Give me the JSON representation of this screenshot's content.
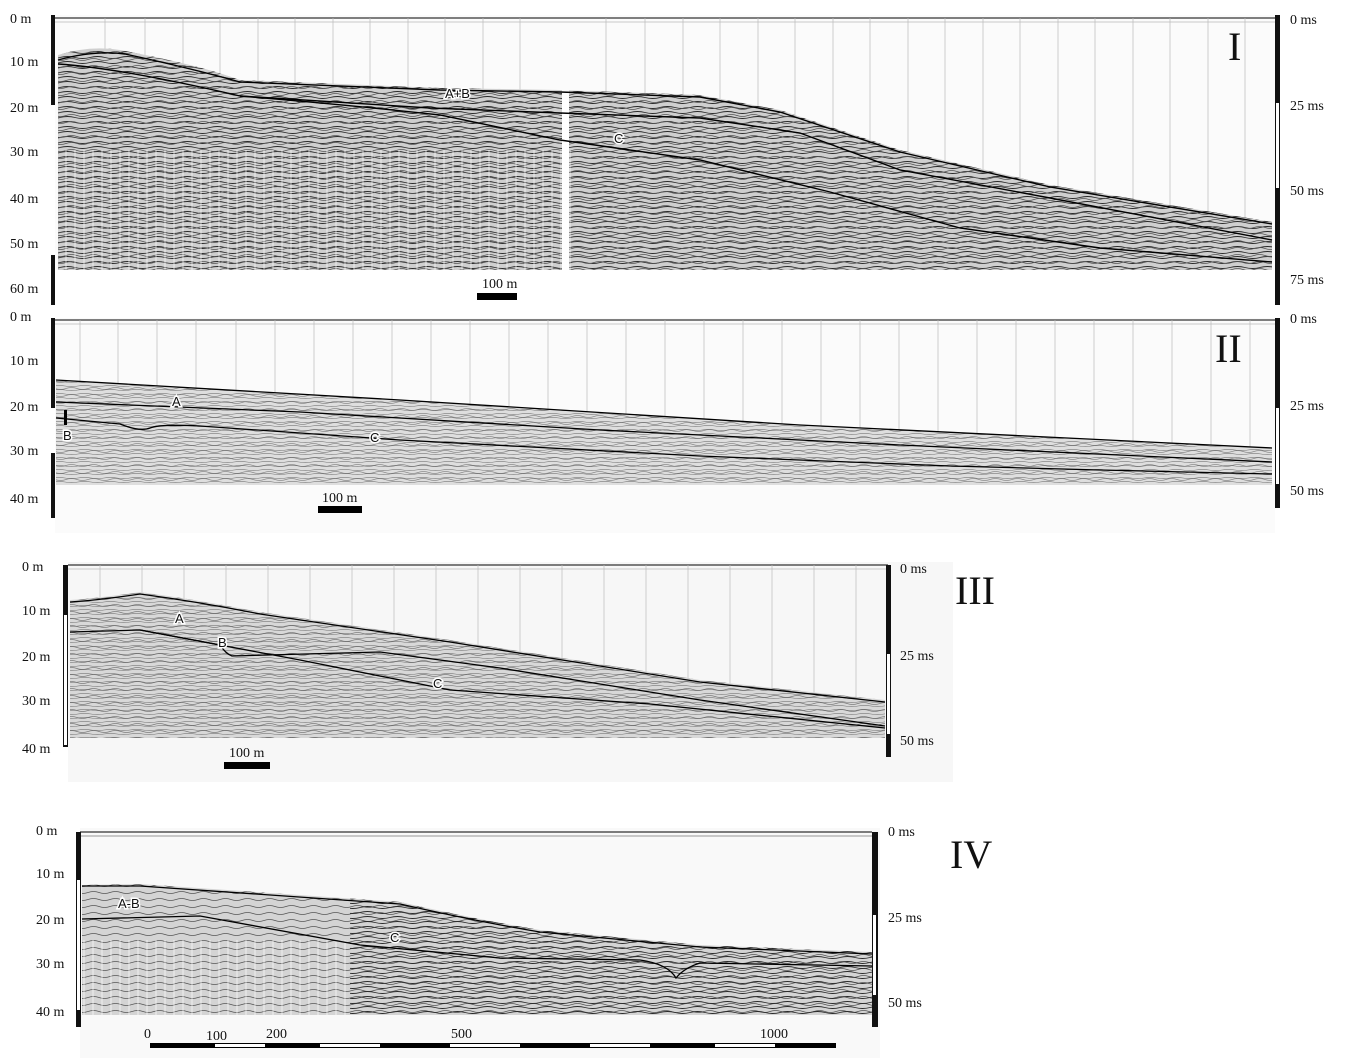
{
  "panels": [
    {
      "id": "I",
      "roman": "I",
      "depth_labels": [
        "0 m",
        "10 m",
        "20 m",
        "30 m",
        "40 m",
        "50 m",
        "60 m"
      ],
      "time_labels": [
        "0 ms",
        "25 ms",
        "50 ms",
        "75 ms"
      ],
      "scale_label": "100 m",
      "horizons": [
        {
          "label": "A+B"
        },
        {
          "label": "C"
        }
      ]
    },
    {
      "id": "II",
      "roman": "II",
      "depth_labels": [
        "0 m",
        "10 m",
        "20 m",
        "30 m",
        "40 m"
      ],
      "time_labels": [
        "0 ms",
        "25 ms",
        "50 ms"
      ],
      "scale_label": "100 m",
      "horizons": [
        {
          "label": "A"
        },
        {
          "label": "B"
        },
        {
          "label": "C"
        }
      ]
    },
    {
      "id": "III",
      "roman": "III",
      "depth_labels": [
        "0 m",
        "10 m",
        "20 m",
        "30 m",
        "40 m"
      ],
      "time_labels": [
        "0 ms",
        "25 ms",
        "50 ms"
      ],
      "scale_label": "100 m",
      "horizons": [
        {
          "label": "A"
        },
        {
          "label": "B"
        },
        {
          "label": "C"
        }
      ]
    },
    {
      "id": "IV",
      "roman": "IV",
      "depth_labels": [
        "0 m",
        "10 m",
        "20 m",
        "30 m",
        "40 m"
      ],
      "time_labels": [
        "0 ms",
        "25 ms",
        "50 ms"
      ],
      "scale_ticks": [
        "0",
        "100",
        "200",
        "500",
        "1000"
      ],
      "horizons": [
        {
          "label": "A-B"
        },
        {
          "label": "C"
        }
      ]
    }
  ]
}
